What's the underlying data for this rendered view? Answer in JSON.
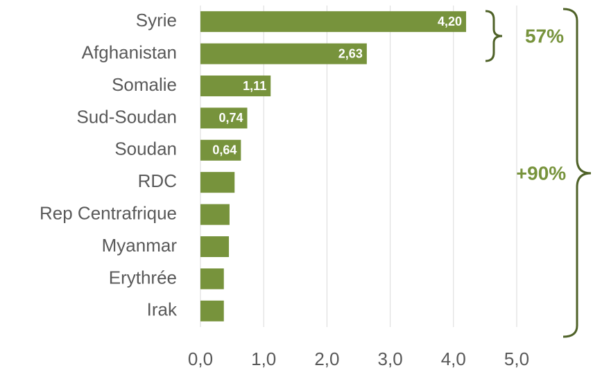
{
  "chart_data": {
    "type": "bar",
    "orientation": "horizontal",
    "categories": [
      "Syrie",
      "Afghanistan",
      "Somalie",
      "Sud-Soudan",
      "Soudan",
      "RDC",
      "Rep Centrafrique",
      "Myanmar",
      "Erythrée",
      "Irak"
    ],
    "values": [
      4.2,
      2.63,
      1.11,
      0.74,
      0.64,
      0.54,
      0.46,
      0.45,
      0.37,
      0.37
    ],
    "value_labels": [
      "4,20",
      "2,63",
      "1,11",
      "0,74",
      "0,64",
      null,
      null,
      null,
      null,
      null
    ],
    "color": "#77933c",
    "xlim": [
      0,
      5
    ],
    "xticks": [
      {
        "value": 0,
        "label": "0,0"
      },
      {
        "value": 1,
        "label": "1,0"
      },
      {
        "value": 2,
        "label": "2,0"
      },
      {
        "value": 3,
        "label": "3,0"
      },
      {
        "value": 4,
        "label": "4,0"
      },
      {
        "value": 5,
        "label": "5,0"
      }
    ],
    "grid": true,
    "annotations": [
      "57%",
      "+90%"
    ]
  }
}
